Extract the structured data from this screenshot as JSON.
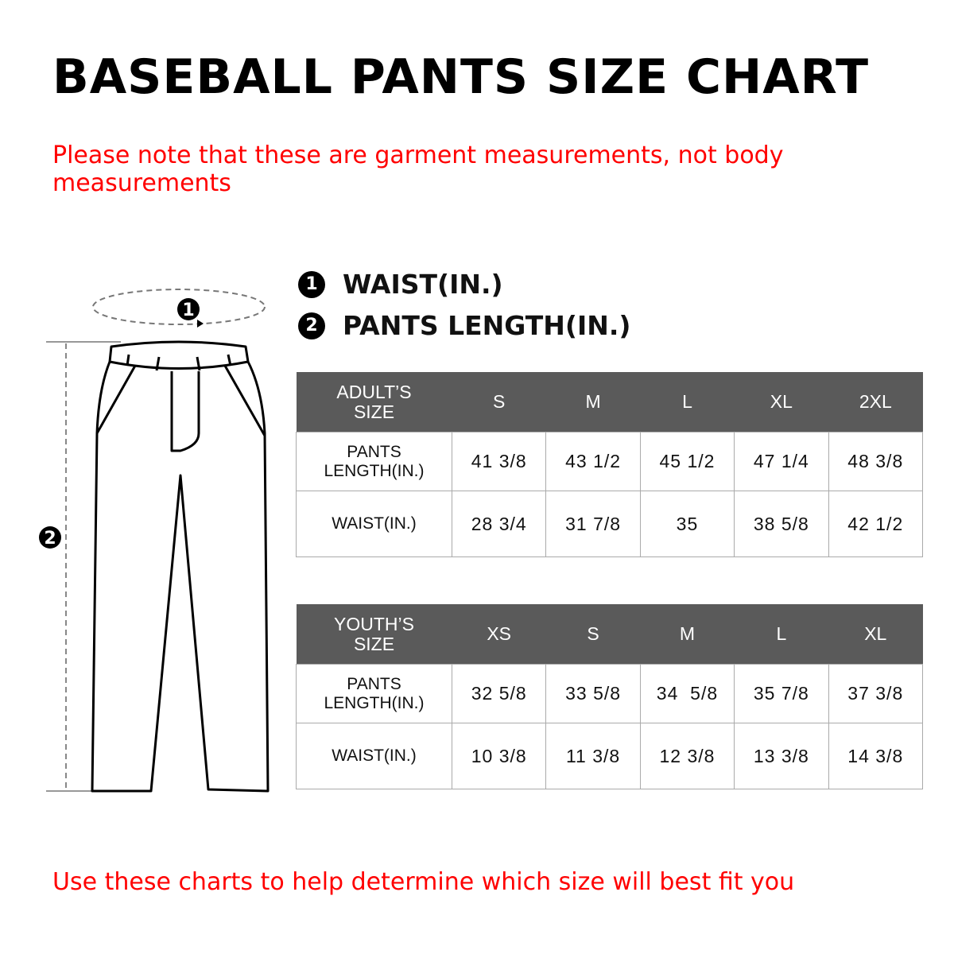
{
  "title": "BASEBALL PANTS SIZE CHART",
  "note": "Please note that these are garment measurements, not body measurements",
  "legend": [
    {
      "num": "1",
      "label": "WAIST(IN.)"
    },
    {
      "num": "2",
      "label": "PANTS LENGTH(IN.)"
    }
  ],
  "diagram": {
    "marker_waist": "1",
    "marker_length": "2"
  },
  "adult_table": {
    "header": [
      "ADULT’S SIZE",
      "S",
      "M",
      "L",
      "XL",
      "2XL"
    ],
    "rows": [
      {
        "label": "PANTS LENGTH(IN.)",
        "values": [
          "41 3/8",
          "43 1/2",
          "45 1/2",
          "47 1/4",
          "48 3/8"
        ]
      },
      {
        "label": "WAIST(IN.)",
        "values": [
          "28 3/4",
          "31 7/8",
          "35",
          "38 5/8",
          "42 1/2"
        ]
      }
    ]
  },
  "youth_table": {
    "header": [
      "YOUTH’S SIZE",
      "XS",
      "S",
      "M",
      "L",
      "XL"
    ],
    "rows": [
      {
        "label": "PANTS LENGTH(IN.)",
        "values": [
          "32 5/8",
          "33 5/8",
          "34  5/8",
          "35 7/8",
          "37 3/8"
        ]
      },
      {
        "label": "WAIST(IN.)",
        "values": [
          "10 3/8",
          "11 3/8",
          "12 3/8",
          "13 3/8",
          "14 3/8"
        ]
      }
    ]
  },
  "footer": "Use these charts to help determine which size will best fit you",
  "colors": {
    "accent_red": "#ff0000",
    "header_gray": "#5a5a5a"
  }
}
